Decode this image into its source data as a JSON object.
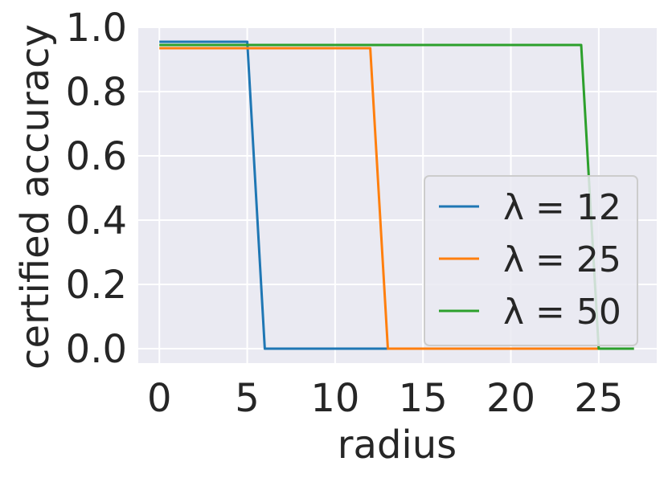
{
  "chart_data": {
    "type": "line",
    "xlabel": "radius",
    "ylabel": "certified accuracy",
    "xlim": [
      -1.2,
      28.3
    ],
    "ylim": [
      -0.045,
      1.0
    ],
    "xticks": [
      0,
      5,
      10,
      15,
      20,
      25
    ],
    "xtick_labels": [
      "0",
      "5",
      "10",
      "15",
      "20",
      "25"
    ],
    "yticks": [
      0.0,
      0.2,
      0.4,
      0.6,
      0.8,
      1.0
    ],
    "ytick_labels": [
      "0.0",
      "0.2",
      "0.4",
      "0.6",
      "0.8",
      "1.0"
    ],
    "grid": true,
    "legend_position": "lower-right",
    "series": [
      {
        "name": "λ = 12",
        "color": "#1f77b4",
        "x": [
          0,
          1,
          2,
          3,
          4,
          5,
          6,
          7,
          8,
          9,
          10,
          11,
          12,
          13,
          14,
          15,
          16,
          17,
          18,
          19,
          20,
          21,
          22,
          23,
          24,
          25,
          26,
          27
        ],
        "y": [
          0.955,
          0.955,
          0.955,
          0.955,
          0.955,
          0.955,
          0.0,
          0.0,
          0.0,
          0.0,
          0.0,
          0.0,
          0.0,
          0.0,
          0.0,
          0.0,
          0.0,
          0.0,
          0.0,
          0.0,
          0.0,
          0.0,
          0.0,
          0.0,
          0.0,
          0.0,
          0.0,
          0.0
        ]
      },
      {
        "name": "λ = 25",
        "color": "#ff7f0e",
        "x": [
          0,
          1,
          2,
          3,
          4,
          5,
          6,
          7,
          8,
          9,
          10,
          11,
          12,
          13,
          14,
          15,
          16,
          17,
          18,
          19,
          20,
          21,
          22,
          23,
          24,
          25,
          26,
          27
        ],
        "y": [
          0.935,
          0.935,
          0.935,
          0.935,
          0.935,
          0.935,
          0.935,
          0.935,
          0.935,
          0.935,
          0.935,
          0.935,
          0.935,
          0.0,
          0.0,
          0.0,
          0.0,
          0.0,
          0.0,
          0.0,
          0.0,
          0.0,
          0.0,
          0.0,
          0.0,
          0.0,
          0.0,
          0.0
        ]
      },
      {
        "name": "λ = 50",
        "color": "#2ca02c",
        "x": [
          0,
          1,
          2,
          3,
          4,
          5,
          6,
          7,
          8,
          9,
          10,
          11,
          12,
          13,
          14,
          15,
          16,
          17,
          18,
          19,
          20,
          21,
          22,
          23,
          24,
          25,
          26,
          27
        ],
        "y": [
          0.945,
          0.945,
          0.945,
          0.945,
          0.945,
          0.945,
          0.945,
          0.945,
          0.945,
          0.945,
          0.945,
          0.945,
          0.945,
          0.945,
          0.945,
          0.945,
          0.945,
          0.945,
          0.945,
          0.945,
          0.945,
          0.945,
          0.945,
          0.945,
          0.945,
          0.0,
          0.0,
          0.0
        ]
      }
    ]
  },
  "style": {
    "plot_background": "#eaeaf2",
    "grid_color": "#ffffff",
    "text_color": "#262626",
    "legend_background": "#eaeaf2",
    "legend_border": "#cccccc"
  }
}
